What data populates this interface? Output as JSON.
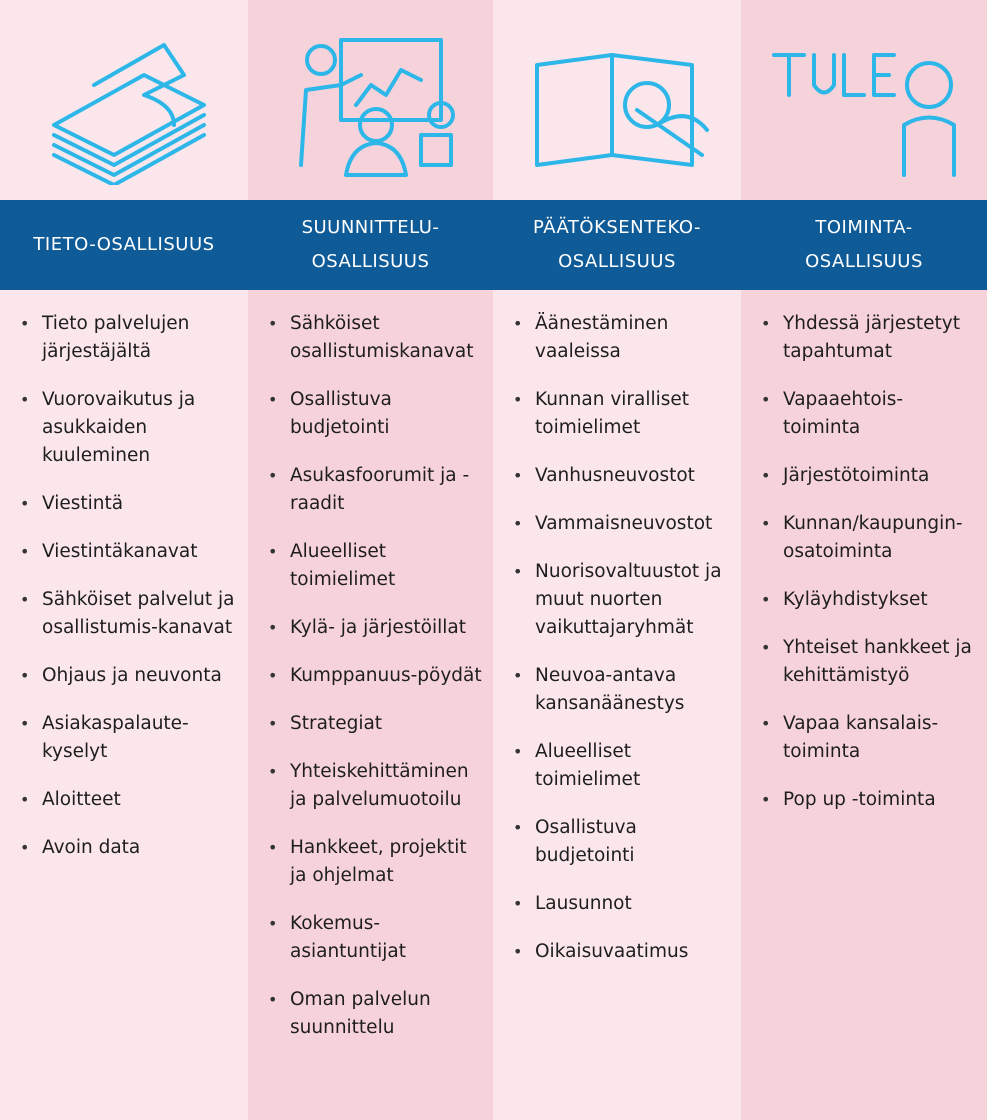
{
  "columns": [
    {
      "header": [
        "TIETO-OSALLISUUS"
      ],
      "items": [
        "Tieto palvelujen järjestäjältä",
        "Vuorovaikutus ja asukkaiden kuuleminen",
        "Viestintä",
        "Viestintäkanavat",
        "Sähköiset palvelut ja osallistumis-kanavat",
        "Ohjaus ja neuvonta",
        "Asiakaspalaute-kyselyt",
        "Aloitteet",
        "Avoin data"
      ]
    },
    {
      "header": [
        "SUUNNITTELU-",
        "OSALLISUUS"
      ],
      "items": [
        "Sähköiset osallistumiskanavat",
        "Osallistuva budjetointi",
        "Asukasfoorumit ja -raadit",
        "Alueelliset toimielimet",
        "Kylä- ja järjestöillat",
        "Kumppanuus-pöydät",
        "Strategiat",
        "Yhteiskehittäminen ja palvelumuotoilu",
        "Hankkeet, projektit ja ohjelmat",
        "Kokemus-asiantuntijat",
        "Oman palvelun suunnittelu"
      ]
    },
    {
      "header": [
        "PÄÄTÖKSENTEKO-",
        "OSALLISUUS"
      ],
      "items": [
        "Äänestäminen vaaleissa",
        "Kunnan viralliset toimielimet",
        "Vanhusneuvostot",
        "Vammaisneuvostot",
        "Nuorisovaltuustot ja muut nuorten vaikuttajaryhmät",
        "Neuvoa-antava kansanäänestys",
        "Alueelliset toimielimet",
        "Osallistuva budjetointi",
        "Lausunnot",
        "Oikaisuvaatimus"
      ]
    },
    {
      "header": [
        "TOIMINTA-",
        "OSALLISUUS"
      ],
      "items": [
        "Yhdessä järjestetyt tapahtumat",
        "Vapaaehtois-toiminta",
        "Järjestötoiminta",
        "Kunnan/kaupungin-osatoiminta",
        "Kyläyhdistykset",
        "Yhteiset hankkeet ja kehittämistyö",
        "Vapaa kansalais-toiminta",
        "Pop up -toiminta"
      ]
    }
  ]
}
